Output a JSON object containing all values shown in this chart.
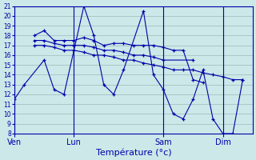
{
  "xlabel": "Température (°c)",
  "bg_color": "#cce8e8",
  "line_color": "#0000aa",
  "grid_color": "#99bbbb",
  "ylim": [
    8,
    21
  ],
  "yticks": [
    8,
    9,
    10,
    11,
    12,
    13,
    14,
    15,
    16,
    17,
    18,
    19,
    20,
    21
  ],
  "xlim": [
    0,
    24
  ],
  "day_positions": [
    0,
    6,
    15,
    21
  ],
  "day_labels": [
    "Ven",
    "Lun",
    "Sam",
    "Dim"
  ],
  "series": [
    {
      "x": [
        0,
        1,
        3,
        4,
        5,
        7,
        8,
        9,
        10,
        11,
        13,
        14,
        15,
        16,
        17,
        18,
        19,
        20,
        21,
        22,
        23
      ],
      "y": [
        11.5,
        13.0,
        15.5,
        12.5,
        12.0,
        21.0,
        18.0,
        13.0,
        12.0,
        14.5,
        20.5,
        14.0,
        12.5,
        10.0,
        9.5,
        11.5,
        14.5,
        9.5,
        8.0,
        8.0,
        13.5
      ]
    },
    {
      "x": [
        2,
        3,
        4,
        5,
        6,
        7,
        8,
        9,
        10,
        11,
        12,
        13,
        14,
        15,
        16,
        17,
        18,
        19
      ],
      "y": [
        18.0,
        18.5,
        17.5,
        17.5,
        17.5,
        17.8,
        17.5,
        17.0,
        17.2,
        17.2,
        17.0,
        17.0,
        17.0,
        16.8,
        16.5,
        16.5,
        13.5,
        13.2
      ]
    },
    {
      "x": [
        2,
        3,
        4,
        5,
        6,
        7,
        8,
        9,
        10,
        11,
        12,
        13,
        14,
        15,
        18
      ],
      "y": [
        17.5,
        17.5,
        17.2,
        17.0,
        17.0,
        17.0,
        16.8,
        16.5,
        16.5,
        16.3,
        16.0,
        16.0,
        15.8,
        15.5,
        15.5
      ]
    },
    {
      "x": [
        2,
        3,
        4,
        5,
        6,
        7,
        8,
        9,
        10,
        11,
        12,
        13,
        14,
        15,
        16,
        17,
        18,
        19,
        20,
        21,
        22,
        23
      ],
      "y": [
        17.0,
        17.0,
        16.8,
        16.5,
        16.5,
        16.3,
        16.0,
        16.0,
        15.8,
        15.5,
        15.5,
        15.2,
        15.0,
        14.8,
        14.5,
        14.5,
        14.5,
        14.2,
        14.0,
        13.8,
        13.5,
        13.5
      ]
    }
  ]
}
